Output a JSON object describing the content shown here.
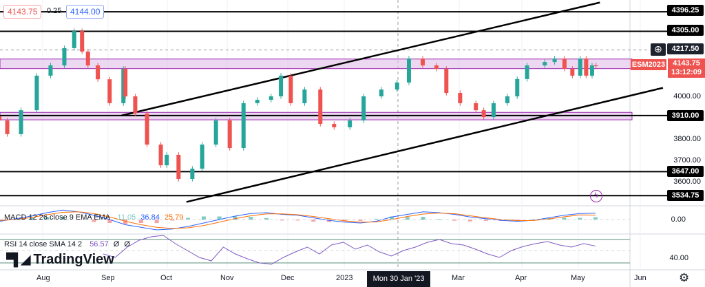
{
  "header": {
    "bid": "4143.75",
    "spread": "0.25",
    "ask": "4144.00"
  },
  "symbol_label": "ESM2023",
  "last_price": "4143.75",
  "countdown": "13:12:09",
  "price_axis": [
    "4000.00",
    "3800.00",
    "3700.00",
    "3600.00"
  ],
  "level_labels": [
    "4396.25",
    "4305.00",
    "4217.50",
    "3910.00",
    "3647.00",
    "3534.75"
  ],
  "macd": {
    "label": "MACD 12 26 close 9 EMA EMA",
    "hist": "11.05",
    "macd": "36.84",
    "signal": "25.79",
    "axis": "0.00"
  },
  "rsi": {
    "label": "RSI 14 close SMA 14 2",
    "value": "56.57",
    "v2": "Ø",
    "v3": "Ø",
    "axis": "40.00"
  },
  "logo": "TradingView",
  "time_axis": [
    "Aug",
    "Sep",
    "Oct",
    "Nov",
    "Dec",
    "2023",
    "Mar",
    "Apr",
    "May",
    "Jun"
  ],
  "crosshair_date": "Mon 30 Jan '23",
  "colors": {
    "up": "#26a69a",
    "down": "#ef5350",
    "zone": "#e1bee7",
    "zone_border": "#9c27b0",
    "macd": "#2962ff",
    "signal": "#ff6d00",
    "rsi": "#7e57c2"
  },
  "chart_data": {
    "type": "candlestick",
    "symbol": "ESM2023",
    "ylim": [
      3500,
      4420
    ],
    "horizontal_levels": [
      4396.25,
      4305.0,
      4217.5,
      3910.0,
      3647.0,
      3534.75
    ],
    "zones": [
      [
        4130,
        4175
      ],
      [
        3890,
        3925
      ]
    ],
    "channel": {
      "upper": [
        [
          "2022-09-10",
          3910
        ],
        [
          "2023-05-11",
          4440
        ]
      ],
      "lower": [
        [
          "2022-10-13",
          3505
        ],
        [
          "2023-06-12",
          4040
        ]
      ]
    },
    "closes": [
      [
        "2022-07-10",
        3887
      ],
      [
        "2022-07-14",
        3823
      ],
      [
        "2022-07-21",
        3935
      ],
      [
        "2022-07-29",
        4097
      ],
      [
        "2022-08-05",
        4145
      ],
      [
        "2022-08-12",
        4226
      ],
      [
        "2022-08-17",
        4306
      ],
      [
        "2022-08-21",
        4210
      ],
      [
        "2022-08-24",
        4145
      ],
      [
        "2022-08-29",
        4080
      ],
      [
        "2022-09-04",
        3968
      ],
      [
        "2022-09-11",
        4129
      ],
      [
        "2022-09-12",
        4000
      ],
      [
        "2022-09-17",
        3920
      ],
      [
        "2022-09-23",
        3774
      ],
      [
        "2022-09-30",
        3677
      ],
      [
        "2022-10-03",
        3726
      ],
      [
        "2022-10-09",
        3613
      ],
      [
        "2022-10-16",
        3661
      ],
      [
        "2022-10-21",
        3774
      ],
      [
        "2022-10-28",
        3887
      ],
      [
        "2022-11-04",
        3758
      ],
      [
        "2022-11-11",
        3968
      ],
      [
        "2022-11-18",
        3984
      ],
      [
        "2022-11-25",
        4000
      ],
      [
        "2022-11-30",
        4097
      ],
      [
        "2022-12-05",
        3968
      ],
      [
        "2022-12-12",
        4032
      ],
      [
        "2022-12-20",
        3871
      ],
      [
        "2022-12-27",
        3855
      ],
      [
        "2023-01-04",
        3887
      ],
      [
        "2023-01-11",
        4000
      ],
      [
        "2023-01-20",
        4032
      ],
      [
        "2023-01-28",
        4065
      ],
      [
        "2023-02-03",
        4177
      ],
      [
        "2023-02-10",
        4145
      ],
      [
        "2023-02-17",
        4129
      ],
      [
        "2023-02-22",
        4016
      ],
      [
        "2023-03-01",
        3968
      ],
      [
        "2023-03-09",
        3935
      ],
      [
        "2023-03-13",
        3903
      ],
      [
        "2023-03-18",
        3968
      ],
      [
        "2023-03-25",
        4000
      ],
      [
        "2023-03-30",
        4081
      ],
      [
        "2023-04-04",
        4145
      ],
      [
        "2023-04-13",
        4161
      ],
      [
        "2023-04-18",
        4177
      ],
      [
        "2023-04-23",
        4129
      ],
      [
        "2023-04-27",
        4097
      ],
      [
        "2023-05-01",
        4177
      ],
      [
        "2023-05-04",
        4097
      ],
      [
        "2023-05-07",
        4145
      ],
      [
        "2023-05-09",
        4143.75
      ]
    ],
    "macd_line": [
      -10,
      5,
      20,
      40,
      55,
      45,
      25,
      0,
      -30,
      -45,
      -60,
      -55,
      -40,
      -20,
      0,
      20,
      35,
      40,
      30,
      25,
      10,
      -5,
      -15,
      -20,
      -10,
      15,
      30,
      45,
      40,
      30,
      15,
      5,
      -5,
      -10,
      -5,
      10,
      25,
      35,
      37
    ],
    "signal_line": [
      -5,
      0,
      12,
      28,
      42,
      45,
      35,
      15,
      -10,
      -30,
      -45,
      -52,
      -48,
      -35,
      -15,
      5,
      22,
      33,
      33,
      28,
      18,
      5,
      -8,
      -15,
      -14,
      0,
      18,
      32,
      38,
      34,
      22,
      10,
      0,
      -6,
      -6,
      3,
      16,
      27,
      26
    ],
    "rsi_line": [
      45,
      40,
      55,
      65,
      70,
      72,
      60,
      50,
      40,
      35,
      55,
      45,
      38,
      32,
      30,
      40,
      48,
      55,
      45,
      58,
      62,
      52,
      58,
      48,
      42,
      50,
      55,
      62,
      66,
      60,
      58,
      52,
      45,
      40,
      50,
      56,
      60,
      63,
      58,
      55,
      60,
      56.57
    ]
  }
}
